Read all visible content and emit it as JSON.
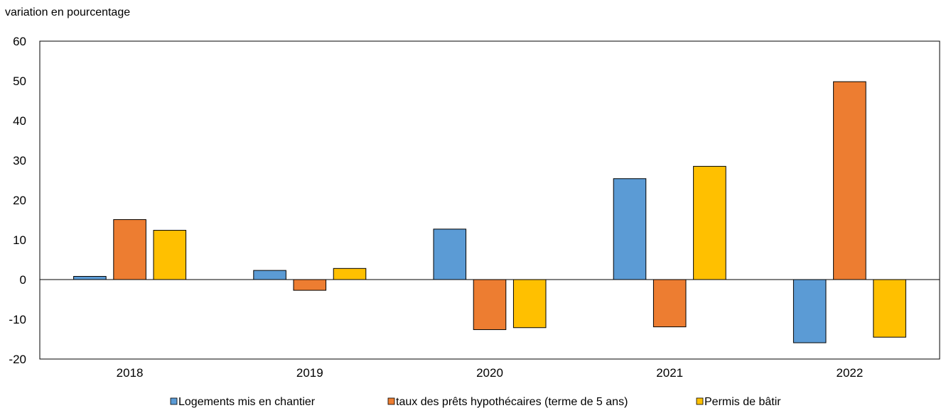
{
  "chart_data": {
    "type": "bar",
    "ylabel": "variation en pourcentage",
    "categories": [
      "2018",
      "2019",
      "2020",
      "2021",
      "2022"
    ],
    "series": [
      {
        "name": "Logements mis en chantier",
        "color": "#5B9BD5",
        "values": [
          0.8,
          2.3,
          12.7,
          25.4,
          -15.9
        ]
      },
      {
        "name": "taux des prêts hypothécaires (terme de 5 ans)",
        "color": "#ED7D31",
        "values": [
          15.1,
          -2.7,
          -12.6,
          -11.9,
          49.8
        ]
      },
      {
        "name": "Permis de bâtir",
        "color": "#FFC000",
        "values": [
          12.4,
          2.8,
          -12.1,
          28.5,
          -14.5
        ]
      }
    ],
    "ylim": [
      -20,
      60
    ],
    "yticks": [
      "60",
      "50",
      "40",
      "30",
      "20",
      "10",
      "0",
      "-10",
      "-20"
    ],
    "grid": false,
    "legend": "bottom"
  }
}
